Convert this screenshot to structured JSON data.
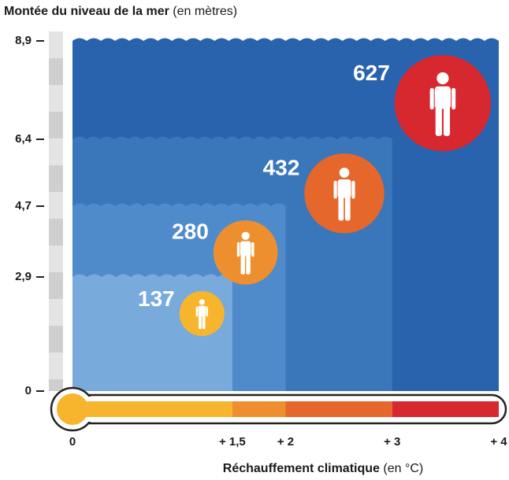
{
  "chart_data": {
    "type": "step",
    "title": "Montée du niveau de la mer",
    "title_unit": "(en mètres)",
    "xlabel": "Réchauffement climatique",
    "xlabel_unit": "(en °C)",
    "x": [
      1.5,
      2,
      3,
      4
    ],
    "values": [
      2.9,
      4.7,
      6.4,
      8.9
    ],
    "water_colors": [
      "#78aadc",
      "#4f8bca",
      "#3a76ba",
      "#2963ad"
    ],
    "people": {
      "values": [
        137,
        280,
        432,
        627
      ],
      "colors": [
        "#f7b52e",
        "#ee8f2f",
        "#e5672b",
        "#d7272f"
      ]
    },
    "xlim": [
      0,
      4
    ],
    "ylim": [
      0,
      8.9
    ],
    "xticks": [
      0,
      {
        "value": 1.5,
        "label": "+ 1,5"
      },
      {
        "value": 2,
        "label": "+ 2"
      },
      {
        "value": 3,
        "label": "+ 3"
      },
      {
        "value": 4,
        "label": "+ 4"
      }
    ],
    "yticks": [
      0,
      {
        "value": 2.9,
        "label": "2,9"
      },
      {
        "value": 4.7,
        "label": "4,7"
      },
      {
        "value": 6.4,
        "label": "6,4"
      },
      {
        "value": 8.9,
        "label": "8,9"
      }
    ]
  }
}
